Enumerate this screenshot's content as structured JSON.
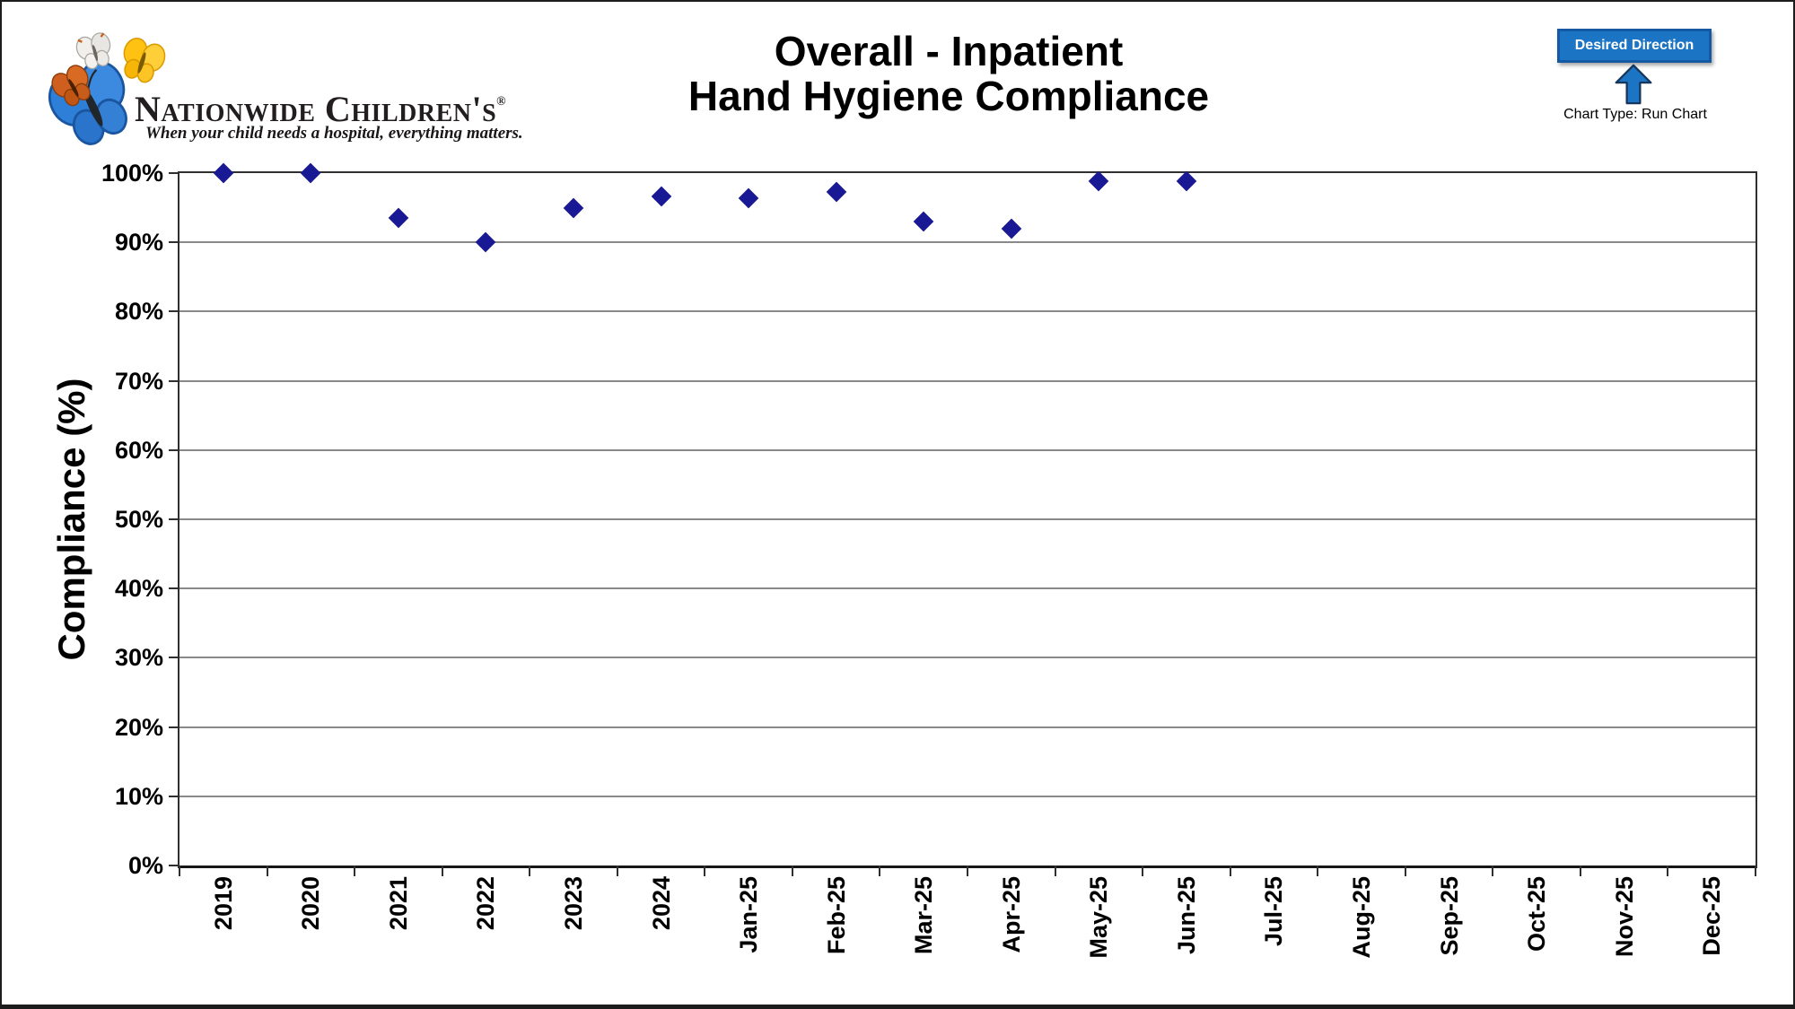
{
  "logo": {
    "name": "Nationwide Children's",
    "registered": "®",
    "tagline": "When your child needs a hospital, everything matters.",
    "butterfly_colors": {
      "blue": "#2e7fd8",
      "orange": "#ce5f1e",
      "yellow": "#ffc212",
      "white": "#f0efec"
    }
  },
  "title": {
    "line1": "Overall - Inpatient",
    "line2": "Hand Hygiene Compliance"
  },
  "direction_badge": {
    "label": "Desired Direction",
    "arrow_icon": "up-arrow",
    "chart_type": "Chart Type: Run Chart",
    "fill": "#1c74c4",
    "box_border": "#1559a4",
    "arrow_border": "#17365d",
    "text_color": "#ffffff"
  },
  "chart_data": {
    "type": "scatter",
    "title": "Overall - Inpatient Hand Hygiene Compliance",
    "xlabel": "",
    "ylabel": "Compliance (%)",
    "categories": [
      "2019",
      "2020",
      "2021",
      "2022",
      "2023",
      "2024",
      "Jan-25",
      "Feb-25",
      "Mar-25",
      "Apr-25",
      "May-25",
      "Jun-25",
      "Jul-25",
      "Aug-25",
      "Sep-25",
      "Oct-25",
      "Nov-25",
      "Dec-25"
    ],
    "series": [
      {
        "name": "Compliance",
        "marker": "diamond",
        "color": "#191996",
        "values": [
          100,
          100,
          93.5,
          90,
          95,
          96.6,
          96.4,
          97.3,
          93,
          92,
          98.9,
          98.9,
          null,
          null,
          null,
          null,
          null,
          null
        ]
      }
    ],
    "ylim": [
      0,
      100
    ],
    "ytick_step": 10,
    "ytick_suffix": "%",
    "grid": "horizontal",
    "gridline_color": "#898989",
    "legend": "none",
    "x_label_rotation": -90
  }
}
